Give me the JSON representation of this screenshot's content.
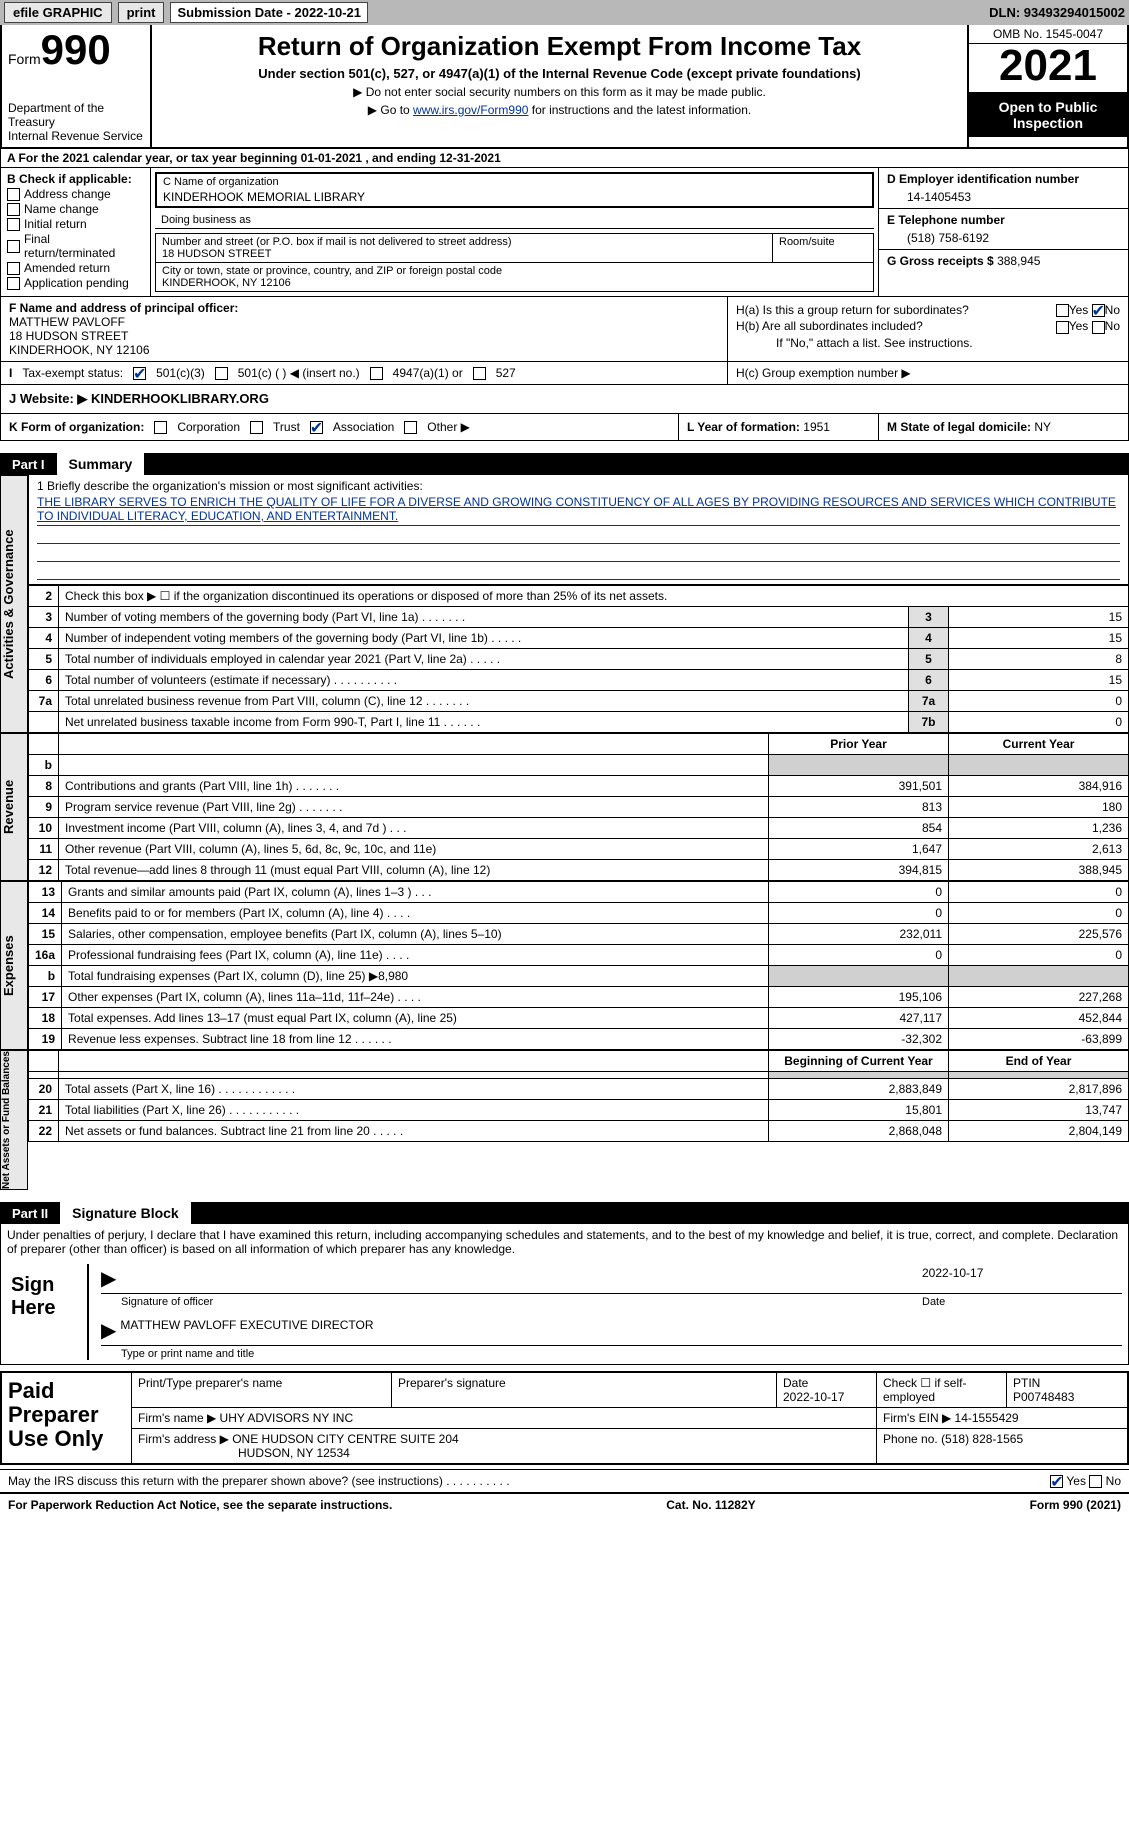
{
  "topbar": {
    "efile": "efile GRAPHIC",
    "print": "print",
    "sub_label": "Submission Date - 2022-10-21",
    "dln": "DLN: 93493294015002"
  },
  "header": {
    "form_word": "Form",
    "form_num": "990",
    "dept": "Department of the Treasury",
    "irs": "Internal Revenue Service",
    "title": "Return of Organization Exempt From Income Tax",
    "sub1": "Under section 501(c), 527, or 4947(a)(1) of the Internal Revenue Code (except private foundations)",
    "sub2": "▶ Do not enter social security numbers on this form as it may be made public.",
    "sub3_pre": "▶ Go to ",
    "sub3_link": "www.irs.gov/Form990",
    "sub3_post": " for instructions and the latest information.",
    "omb": "OMB No. 1545-0047",
    "year": "2021",
    "inspect": "Open to Public Inspection"
  },
  "row_a": "A For the 2021 calendar year, or tax year beginning 01-01-2021    , and ending 12-31-2021",
  "col_b": {
    "head": "B Check if applicable:",
    "items": [
      "Address change",
      "Name change",
      "Initial return",
      "Final return/terminated",
      "Amended return",
      "Application pending"
    ]
  },
  "name_box": {
    "label": "C Name of organization",
    "value": "KINDERHOOK MEMORIAL LIBRARY"
  },
  "dba": "Doing business as",
  "addr": {
    "label": "Number and street (or P.O. box if mail is not delivered to street address)",
    "value": "18 HUDSON STREET",
    "room": "Room/suite"
  },
  "city": {
    "label": "City or town, state or province, country, and ZIP or foreign postal code",
    "value": "KINDERHOOK, NY  12106"
  },
  "col_d": {
    "ein_label": "D Employer identification number",
    "ein": "14-1405453",
    "tel_label": "E Telephone number",
    "tel": "(518) 758-6192",
    "gross_label": "G Gross receipts $",
    "gross": "388,945"
  },
  "row_f": {
    "label": "F Name and address of principal officer:",
    "name": "MATTHEW PAVLOFF",
    "addr1": "18 HUDSON STREET",
    "addr2": "KINDERHOOK, NY  12106"
  },
  "row_h": {
    "ha": "H(a)  Is this a group return for subordinates?",
    "hb": "H(b)  Are all subordinates included?",
    "hb_note": "If \"No,\" attach a list. See instructions.",
    "hc": "H(c)  Group exemption number ▶",
    "yes": "Yes",
    "no": "No"
  },
  "row_i": {
    "label": "Tax-exempt status:",
    "c3": "501(c)(3)",
    "c": "501(c) (  ) ◀ (insert no.)",
    "a1": "4947(a)(1) or",
    "s527": "527"
  },
  "row_j": {
    "label": "J    Website: ▶",
    "value": "KINDERHOOKLIBRARY.ORG"
  },
  "row_k": {
    "label": "K Form of organization:",
    "corp": "Corporation",
    "trust": "Trust",
    "assoc": "Association",
    "other": "Other ▶"
  },
  "row_l": {
    "label": "L Year of formation:",
    "value": "1951"
  },
  "row_m": {
    "label": "M State of legal domicile:",
    "value": "NY"
  },
  "part1": {
    "num": "Part I",
    "title": "Summary"
  },
  "mission": {
    "label": "1   Briefly describe the organization's mission or most significant activities:",
    "text": "THE LIBRARY SERVES TO ENRICH THE QUALITY OF LIFE FOR A DIVERSE AND GROWING CONSTITUENCY OF ALL AGES BY PROVIDING RESOURCES AND SERVICES WHICH CONTRIBUTE TO INDIVIDUAL LITERACY, EDUCATION, AND ENTERTAINMENT."
  },
  "side_labels": {
    "ag": "Activities & Governance",
    "rev": "Revenue",
    "exp": "Expenses",
    "net": "Net Assets or Fund Balances"
  },
  "lines_ag": [
    {
      "n": "2",
      "d": "Check this box ▶ ☐  if the organization discontinued its operations or disposed of more than 25% of its net assets."
    },
    {
      "n": "3",
      "d": "Number of voting members of the governing body (Part VI, line 1a)   .    .    .    .    .    .    .",
      "box": "3",
      "v": "15"
    },
    {
      "n": "4",
      "d": "Number of independent voting members of the governing body (Part VI, line 1b)   .    .    .    .    .",
      "box": "4",
      "v": "15"
    },
    {
      "n": "5",
      "d": "Total number of individuals employed in calendar year 2021 (Part V, line 2a)   .    .    .    .    .",
      "box": "5",
      "v": "8"
    },
    {
      "n": "6",
      "d": "Total number of volunteers (estimate if necessary)    .    .    .    .    .    .    .    .    .    .",
      "box": "6",
      "v": "15"
    },
    {
      "n": "7a",
      "d": "Total unrelated business revenue from Part VIII, column (C), line 12   .    .    .    .    .    .    .",
      "box": "7a",
      "v": "0"
    },
    {
      "n": "",
      "d": "Net unrelated business taxable income from Form 990-T, Part I, line 11   .    .    .    .    .    .",
      "box": "7b",
      "v": "0"
    }
  ],
  "col_headers": {
    "prior": "Prior Year",
    "current": "Current Year"
  },
  "lines_rev": [
    {
      "n": "b",
      "d": "",
      "p": "",
      "c": "",
      "shaded": true
    },
    {
      "n": "8",
      "d": "Contributions and grants (Part VIII, line 1h)   .    .    .    .    .    .    .",
      "p": "391,501",
      "c": "384,916"
    },
    {
      "n": "9",
      "d": "Program service revenue (Part VIII, line 2g)   .    .    .    .    .    .    .",
      "p": "813",
      "c": "180"
    },
    {
      "n": "10",
      "d": "Investment income (Part VIII, column (A), lines 3, 4, and 7d )    .    .    .",
      "p": "854",
      "c": "1,236"
    },
    {
      "n": "11",
      "d": "Other revenue (Part VIII, column (A), lines 5, 6d, 8c, 9c, 10c, and 11e)",
      "p": "1,647",
      "c": "2,613"
    },
    {
      "n": "12",
      "d": "Total revenue—add lines 8 through 11 (must equal Part VIII, column (A), line 12)",
      "p": "394,815",
      "c": "388,945"
    }
  ],
  "lines_exp": [
    {
      "n": "13",
      "d": "Grants and similar amounts paid (Part IX, column (A), lines 1–3 )   .    .    .",
      "p": "0",
      "c": "0"
    },
    {
      "n": "14",
      "d": "Benefits paid to or for members (Part IX, column (A), line 4)   .    .    .    .",
      "p": "0",
      "c": "0"
    },
    {
      "n": "15",
      "d": "Salaries, other compensation, employee benefits (Part IX, column (A), lines 5–10)",
      "p": "232,011",
      "c": "225,576"
    },
    {
      "n": "16a",
      "d": "Professional fundraising fees (Part IX, column (A), line 11e)   .    .    .    .",
      "p": "0",
      "c": "0"
    },
    {
      "n": "b",
      "d": "Total fundraising expenses (Part IX, column (D), line 25) ▶8,980",
      "p": "",
      "c": "",
      "shaded": true
    },
    {
      "n": "17",
      "d": "Other expenses (Part IX, column (A), lines 11a–11d, 11f–24e)   .    .    .    .",
      "p": "195,106",
      "c": "227,268"
    },
    {
      "n": "18",
      "d": "Total expenses. Add lines 13–17 (must equal Part IX, column (A), line 25)",
      "p": "427,117",
      "c": "452,844"
    },
    {
      "n": "19",
      "d": "Revenue less expenses. Subtract line 18 from line 12   .    .    .    .    .    .",
      "p": "-32,302",
      "c": "-63,899"
    }
  ],
  "net_headers": {
    "begin": "Beginning of Current Year",
    "end": "End of Year"
  },
  "lines_net": [
    {
      "n": "",
      "d": "",
      "p": "",
      "c": "",
      "shaded": true
    },
    {
      "n": "20",
      "d": "Total assets (Part X, line 16)   .    .    .    .    .    .    .    .    .    .    .    .",
      "p": "2,883,849",
      "c": "2,817,896"
    },
    {
      "n": "21",
      "d": "Total liabilities (Part X, line 26)   .    .    .    .    .    .    .    .    .    .    .",
      "p": "15,801",
      "c": "13,747"
    },
    {
      "n": "22",
      "d": "Net assets or fund balances. Subtract line 21 from line 20   .    .    .    .    .",
      "p": "2,868,048",
      "c": "2,804,149"
    }
  ],
  "part2": {
    "num": "Part II",
    "title": "Signature Block"
  },
  "sig": {
    "declare": "Under penalties of perjury, I declare that I have examined this return, including accompanying schedules and statements, and to the best of my knowledge and belief, it is true, correct, and complete. Declaration of preparer (other than officer) is based on all information of which preparer has any knowledge.",
    "sign_here": "Sign Here",
    "sig_date": "2022-10-17",
    "sig_officer": "Signature of officer",
    "sig_date_lbl": "Date",
    "name_title": "MATTHEW PAVLOFF  EXECUTIVE DIRECTOR",
    "name_title_lbl": "Type or print name and title"
  },
  "paid": {
    "label": "Paid Preparer Use Only",
    "print_name_lbl": "Print/Type preparer's name",
    "prep_sig_lbl": "Preparer's signature",
    "date_lbl": "Date",
    "date": "2022-10-17",
    "check_lbl": "Check ☐ if self-employed",
    "ptin_lbl": "PTIN",
    "ptin": "P00748483",
    "firm_name_lbl": "Firm's name    ▶",
    "firm_name": "UHY ADVISORS NY INC",
    "firm_ein_lbl": "Firm's EIN ▶",
    "firm_ein": "14-1555429",
    "firm_addr_lbl": "Firm's address ▶",
    "firm_addr1": "ONE HUDSON CITY CENTRE SUITE 204",
    "firm_addr2": "HUDSON, NY  12534",
    "phone_lbl": "Phone no.",
    "phone": "(518) 828-1565"
  },
  "discuss": {
    "text": "May the IRS discuss this return with the preparer shown above? (see instructions)    .    .    .    .    .    .    .    .    .    .",
    "yes": "Yes",
    "no": "No"
  },
  "footer": {
    "left": "For Paperwork Reduction Act Notice, see the separate instructions.",
    "mid": "Cat. No. 11282Y",
    "right": "Form 990 (2021)"
  }
}
